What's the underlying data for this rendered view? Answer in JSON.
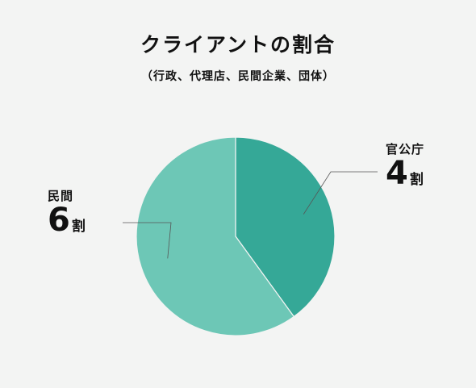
{
  "chart_data": {
    "type": "pie",
    "title": "クライアントの割合",
    "subtitle": "（行政、代理店、民間企業、団体）",
    "unit": "割",
    "slices": [
      {
        "name": "官公庁",
        "value": 4,
        "color": "#35a897"
      },
      {
        "name": "民間",
        "value": 6,
        "color": "#6dc7b6"
      }
    ],
    "start_angle": "12 o'clock, clockwise",
    "legend": "leader-line labels"
  }
}
